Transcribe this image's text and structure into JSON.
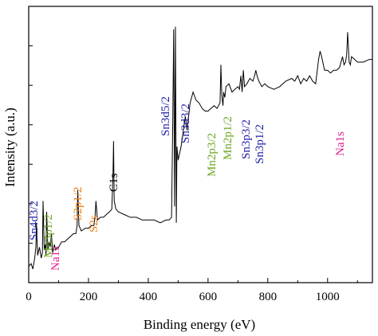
{
  "chart_data": {
    "type": "line",
    "xlabel": "Binding energy (eV)",
    "ylabel": "Intensity (a.u.)",
    "xlim": [
      0,
      1150
    ],
    "ylim": [
      0,
      100
    ],
    "grid": false,
    "x_ticks": [
      0,
      200,
      400,
      600,
      800,
      1000
    ],
    "y_ticks_labeled": false,
    "series": [
      {
        "x": [
          0,
          8,
          14,
          20,
          24,
          26,
          30,
          36,
          42,
          46,
          48,
          52,
          56,
          58,
          60,
          64,
          68,
          72,
          76,
          80,
          86,
          90,
          100,
          110,
          120,
          130,
          140,
          150,
          158,
          162,
          164,
          168,
          176,
          190,
          200,
          210,
          218,
          222,
          225,
          230,
          240,
          250,
          260,
          270,
          278,
          282,
          284,
          286,
          292,
          300,
          320,
          340,
          360,
          380,
          400,
          420,
          440,
          460,
          470,
          478,
          482,
          485,
          488,
          491,
          494,
          496,
          500,
          510,
          520,
          524,
          530,
          540,
          550,
          560,
          570,
          580,
          590,
          600,
          610,
          620,
          630,
          640,
          643,
          646,
          650,
          652,
          656,
          660,
          670,
          680,
          690,
          700,
          705,
          710,
          714,
          718,
          722,
          730,
          740,
          750,
          756,
          760,
          764,
          770,
          780,
          790,
          800,
          820,
          840,
          860,
          880,
          890,
          900,
          910,
          920,
          930,
          940,
          950,
          960,
          970,
          975,
          980,
          990,
          1000,
          1010,
          1020,
          1030,
          1040,
          1050,
          1055,
          1060,
          1064,
          1067,
          1070,
          1072,
          1076,
          1080,
          1100,
          1120,
          1140,
          1150
        ],
        "y": [
          6,
          7,
          5,
          9,
          13,
          22,
          10,
          13,
          9,
          11,
          30,
          12,
          14,
          10,
          26,
          12,
          15,
          13,
          18,
          11,
          14,
          12,
          13,
          15,
          15,
          16,
          17,
          18,
          18,
          21,
          34,
          21,
          19,
          20,
          20,
          21,
          21,
          24,
          30,
          23,
          24,
          24,
          25,
          26,
          27,
          40,
          52,
          30,
          27,
          26,
          25,
          24,
          24,
          23,
          23,
          23,
          22,
          23,
          23,
          24,
          58,
          93,
          28,
          94,
          22,
          50,
          45,
          50,
          58,
          61,
          56,
          66,
          70,
          67,
          66,
          64,
          63,
          63,
          64,
          65,
          64,
          66,
          80,
          69,
          65,
          70,
          68,
          72,
          73,
          70,
          71,
          72,
          71,
          76,
          70,
          78,
          72,
          73,
          75,
          74,
          76,
          78,
          76,
          74,
          72,
          73,
          72,
          71,
          72,
          74,
          75,
          74,
          76,
          73,
          75,
          74,
          76,
          74,
          73,
          82,
          85,
          83,
          78,
          78,
          77,
          78,
          78,
          79,
          83,
          80,
          81,
          84,
          92,
          86,
          81,
          80,
          83,
          81,
          81,
          82,
          82
        ]
      }
    ],
    "annotations": [
      {
        "text": "Sn4d3/2",
        "color": "#1a1aa6"
      },
      {
        "text": "Mn3p1/2",
        "color": "#6aa61e"
      },
      {
        "text": "Na1s",
        "color": "#e0208e"
      },
      {
        "text": "S2p1/2",
        "color": "#f08010"
      },
      {
        "text": "S2s",
        "color": "#f08010"
      },
      {
        "text": "C1s",
        "color": "#000000"
      },
      {
        "text": "Sn3d5/2",
        "color": "#1a1aa6"
      },
      {
        "text": "Sn3d3/2",
        "color": "#1a1aa6"
      },
      {
        "text": "Mn2p3/2",
        "color": "#6aa61e"
      },
      {
        "text": "Mn2p1/2",
        "color": "#6aa61e"
      },
      {
        "text": "Sn3p3/2",
        "color": "#1a1aa6"
      },
      {
        "text": "Sn3p1/2",
        "color": "#1a1aa6"
      },
      {
        "text": "Na1s",
        "color": "#e0208e"
      }
    ]
  }
}
